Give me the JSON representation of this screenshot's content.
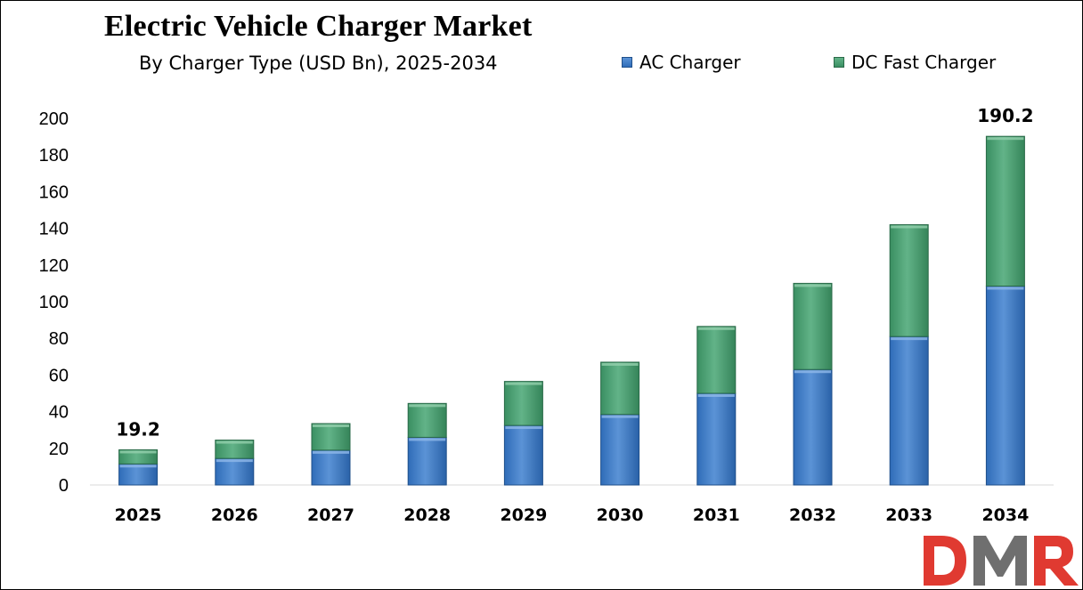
{
  "chart_data": {
    "type": "bar",
    "stacked": true,
    "title": "Electric Vehicle Charger Market",
    "subtitle": "By Charger Type (USD Bn), 2025-2034",
    "categories": [
      "2025",
      "2026",
      "2027",
      "2028",
      "2029",
      "2030",
      "2031",
      "2032",
      "2033",
      "2034"
    ],
    "series": [
      {
        "name": "AC Charger",
        "values": [
          11.5,
          14.5,
          19,
          26,
          32.5,
          38.5,
          50,
          63,
          81,
          108.5
        ]
      },
      {
        "name": "DC Fast Charger",
        "values": [
          7.7,
          10,
          14.5,
          18.5,
          24,
          28.5,
          36.5,
          47,
          61,
          81.7
        ]
      }
    ],
    "totals_labeled": [
      {
        "category": "2025",
        "label": "19.2"
      },
      {
        "category": "2034",
        "label": "190.2"
      }
    ],
    "ylim": [
      0,
      200
    ],
    "yticks": [
      "0",
      "20",
      "40",
      "60",
      "80",
      "100",
      "120",
      "140",
      "160",
      "180",
      "200"
    ],
    "grid": false,
    "legend": "top-right"
  },
  "colors": {
    "ac_top": "#5b93d6",
    "ac_bottom": "#2f6cb8",
    "ac_edge": "#1f4f8a",
    "dc_top": "#62b388",
    "dc_bottom": "#3a8f62",
    "dc_edge": "#2a6a48",
    "logo_red": "#e03a31",
    "logo_gray": "#6f6f6f"
  },
  "logo": {
    "text": "DMR"
  }
}
